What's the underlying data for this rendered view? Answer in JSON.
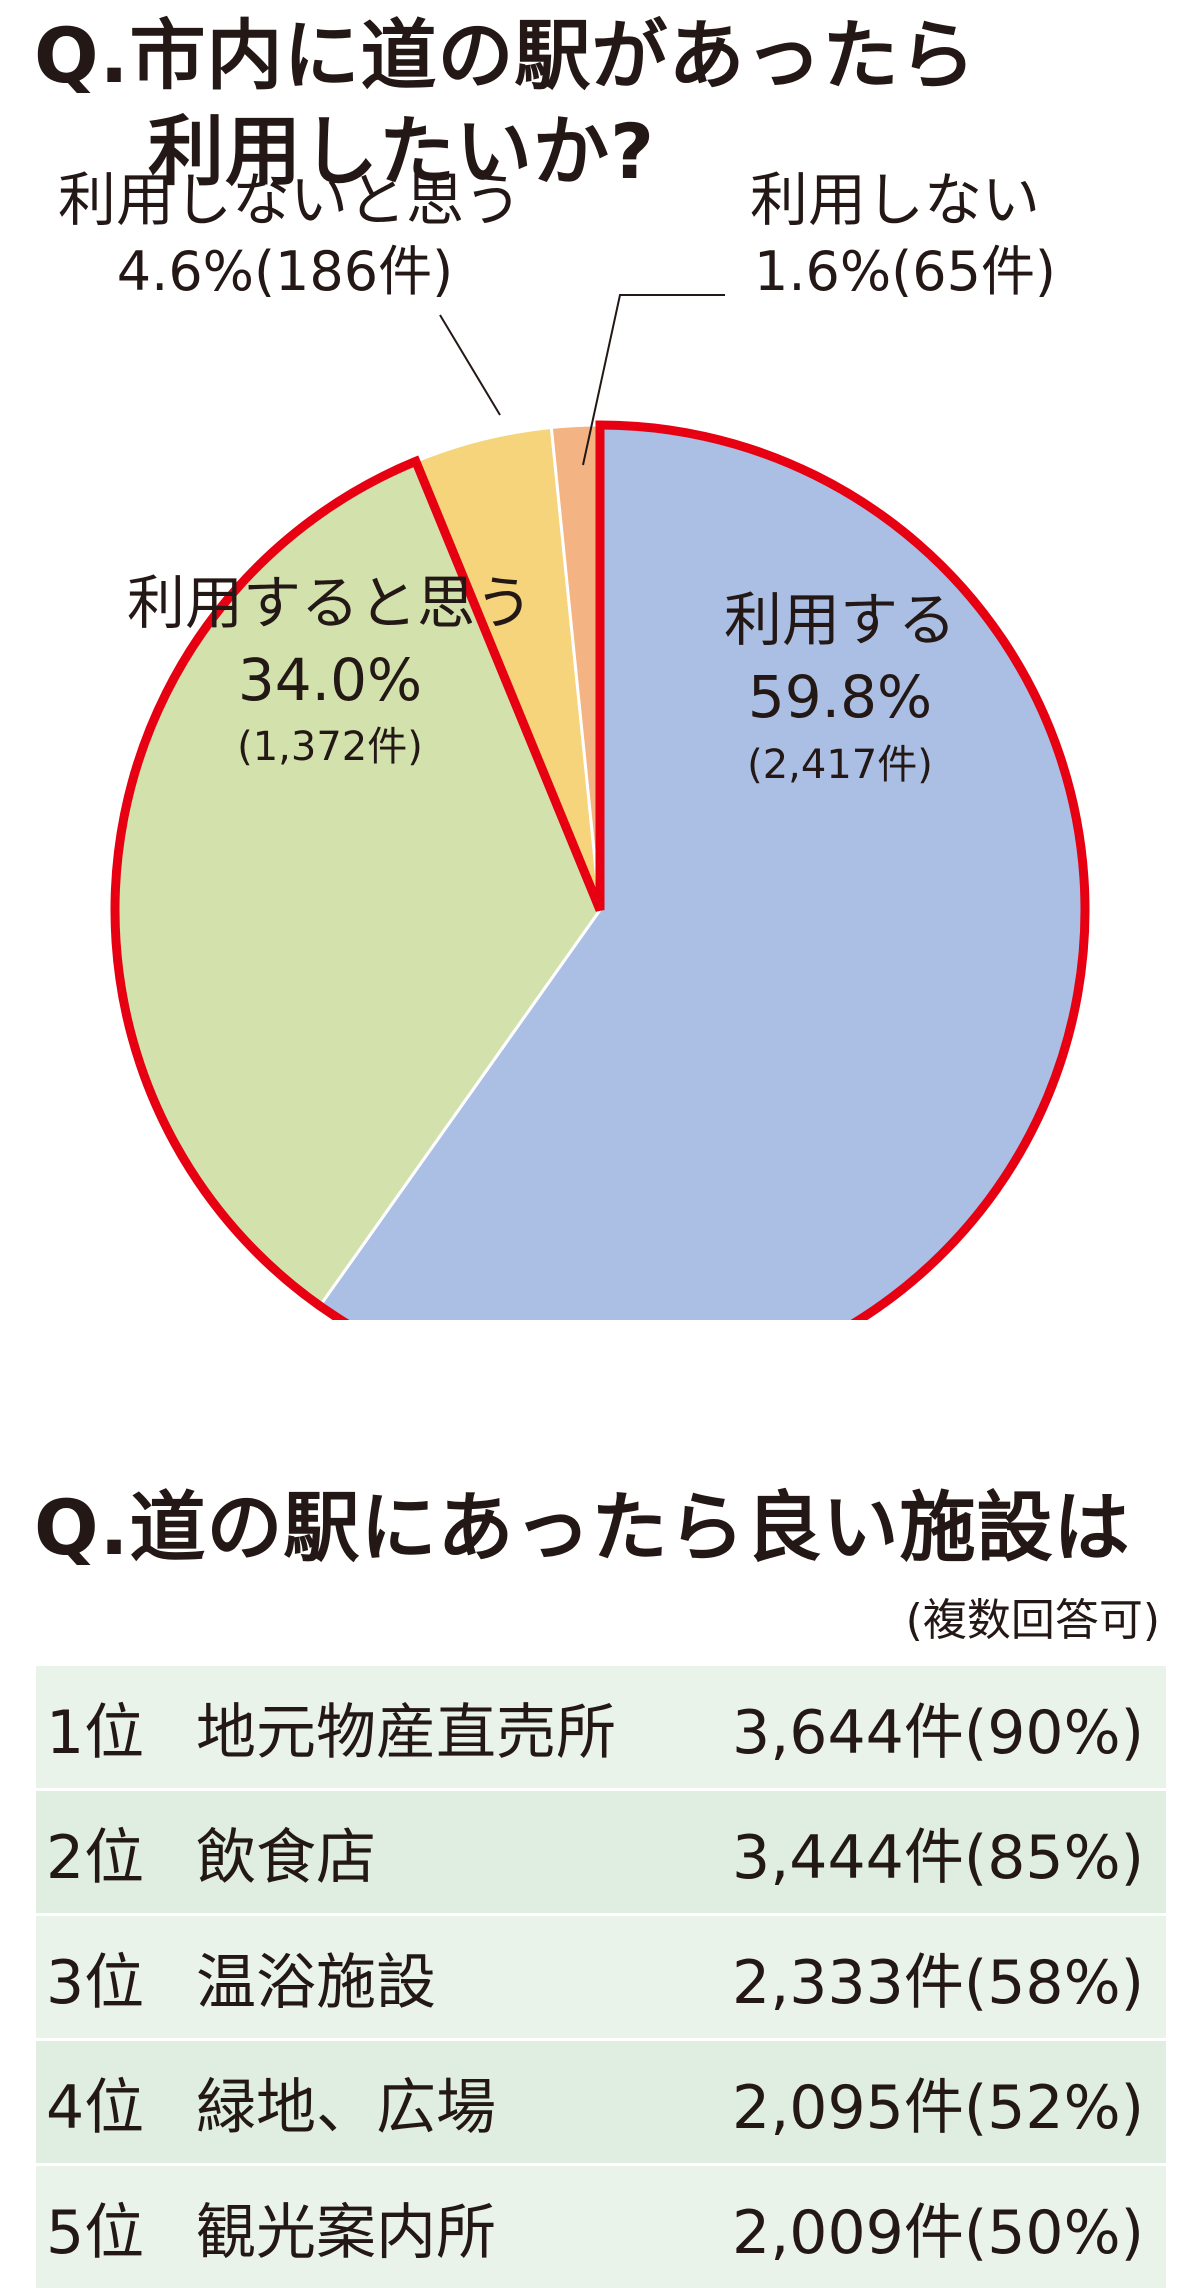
{
  "q1": {
    "title_line1": "Q.市内に道の駅があったら",
    "title_line2": "利用したいか?"
  },
  "chart_data": {
    "type": "pie",
    "title": "Q.市内に道の駅があったら利用したいか?",
    "slices": [
      {
        "label": "利用する",
        "percent": "59.8%",
        "count": "(2,417件)",
        "value": 59.8,
        "color": "#aabfe3"
      },
      {
        "label": "利用すると思う",
        "percent": "34.0%",
        "count": "(1,372件)",
        "value": 34.0,
        "color": "#d3e2ac"
      },
      {
        "label": "利用しないと思う",
        "percent": "4.6%",
        "count": "(186件)",
        "value": 4.6,
        "color": "#f6d47b"
      },
      {
        "label": "利用しない",
        "percent": "1.6%",
        "count": "(65件)",
        "value": 1.6,
        "color": "#f3b382"
      }
    ],
    "highlight_color": "#e60012"
  },
  "q2": {
    "title": "Q.道の駅にあったら良い施設は",
    "note": "(複数回答可)",
    "rows": [
      {
        "rank": "1位",
        "facility": "地元物産直売所",
        "count": "3,644件(90%)"
      },
      {
        "rank": "2位",
        "facility": "飲食店",
        "count": "3,444件(85%)"
      },
      {
        "rank": "3位",
        "facility": "温浴施設",
        "count": "2,333件(58%)"
      },
      {
        "rank": "4位",
        "facility": "緑地、広場",
        "count": "2,095件(52%)"
      },
      {
        "rank": "5位",
        "facility": "観光案内所",
        "count": "2,009件(50%)"
      }
    ]
  }
}
